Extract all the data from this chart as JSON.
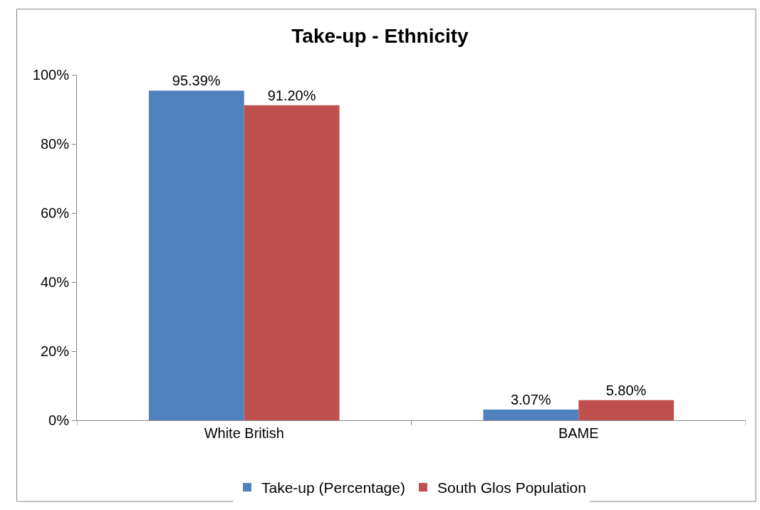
{
  "chart_data": {
    "type": "bar",
    "title": "Take-up - Ethnicity",
    "categories": [
      "White British",
      "BAME"
    ],
    "series": [
      {
        "name": "Take-up (Percentage)",
        "color": "#4f81bd",
        "values": [
          95.39,
          3.07
        ],
        "value_labels": [
          "95.39%",
          "3.07%"
        ]
      },
      {
        "name": "South Glos Population",
        "color": "#c0504d",
        "values": [
          91.2,
          5.8
        ],
        "value_labels": [
          "91.20%",
          "5.80%"
        ]
      }
    ],
    "ylim": [
      0,
      100
    ],
    "yticks": [
      {
        "value": 0,
        "label": "0%"
      },
      {
        "value": 20,
        "label": "20%"
      },
      {
        "value": 40,
        "label": "40%"
      },
      {
        "value": 60,
        "label": "60%"
      },
      {
        "value": 80,
        "label": "80%"
      },
      {
        "value": 100,
        "label": "100%"
      }
    ],
    "legend": "bottom"
  }
}
